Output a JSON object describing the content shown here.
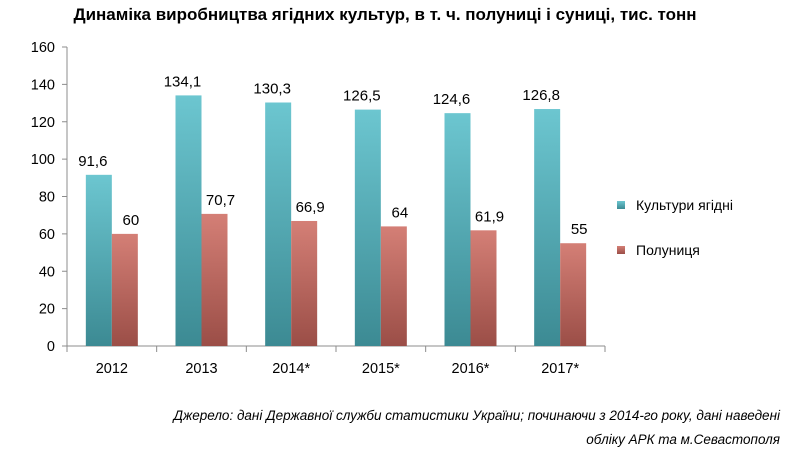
{
  "chart_data": {
    "type": "bar",
    "title": "Динаміка виробництва ягідних культур, в т. ч. полуниці і суниці, тис. тонн",
    "categories": [
      "2012",
      "2013",
      "2014*",
      "2015*",
      "2016*",
      "2017*"
    ],
    "series": [
      {
        "name": "Культури ягідні",
        "values": [
          91.6,
          134.1,
          130.3,
          126.5,
          124.6,
          126.8
        ],
        "labels": [
          "91,6",
          "134,1",
          "130,3",
          "126,5",
          "124,6",
          "126,8"
        ],
        "color_top": "#6cc6d0",
        "color_bottom": "#3c8a93"
      },
      {
        "name": "Полуниця",
        "values": [
          60,
          70.7,
          66.9,
          64,
          61.9,
          55
        ],
        "labels": [
          "60",
          "70,7",
          "66,9",
          "64",
          "61,9",
          "55"
        ],
        "color_top": "#d47f76",
        "color_bottom": "#9b4e47"
      }
    ],
    "ylim": [
      0,
      160
    ],
    "yticks": [
      "0",
      "20",
      "40",
      "60",
      "80",
      "100",
      "120",
      "140",
      "160"
    ],
    "grid": false,
    "legend_position": "right"
  },
  "source_note": {
    "line1": "Джерело: дані Державної служби статистики України; починаючи з 2014-го року, дані наведені",
    "line2": "обліку АРК та м.Севастополя"
  }
}
